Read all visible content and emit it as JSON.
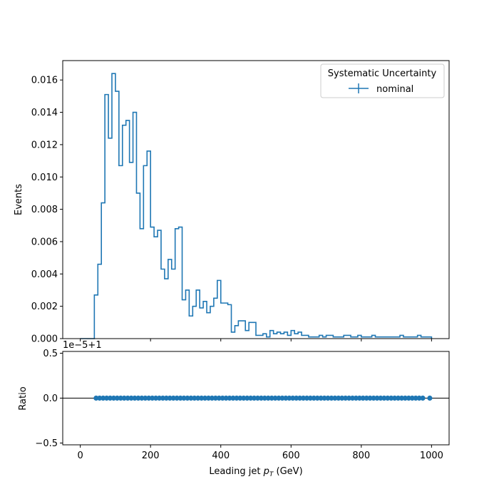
{
  "chart_data": [
    {
      "type": "step-histogram",
      "panel": "main",
      "ylabel": "Events",
      "xlim": [
        -50,
        1050
      ],
      "ylim": [
        0,
        0.0172
      ],
      "xticks": [
        0,
        200,
        400,
        600,
        800,
        1000
      ],
      "yticks": [
        "0.000",
        "0.002",
        "0.004",
        "0.006",
        "0.008",
        "0.010",
        "0.012",
        "0.014",
        "0.016"
      ],
      "bin_edges": [
        0,
        10,
        20,
        30,
        40,
        50,
        60,
        70,
        80,
        90,
        100,
        110,
        120,
        130,
        140,
        150,
        160,
        170,
        180,
        190,
        200,
        210,
        220,
        230,
        240,
        250,
        260,
        270,
        280,
        290,
        300,
        310,
        320,
        330,
        340,
        350,
        360,
        370,
        380,
        390,
        400,
        410,
        420,
        430,
        440,
        450,
        460,
        470,
        480,
        490,
        500,
        510,
        520,
        530,
        540,
        550,
        560,
        570,
        580,
        590,
        600,
        610,
        620,
        630,
        640,
        650,
        660,
        670,
        680,
        690,
        700,
        710,
        720,
        730,
        740,
        750,
        760,
        770,
        780,
        790,
        800,
        810,
        820,
        830,
        840,
        850,
        860,
        870,
        880,
        890,
        900,
        910,
        920,
        930,
        940,
        950,
        960,
        970,
        980,
        990,
        1000
      ],
      "series": [
        {
          "name": "nominal",
          "color": "#1f77b4",
          "values": [
            0,
            0,
            0,
            0,
            0.0027,
            0.0046,
            0.0084,
            0.0151,
            0.0124,
            0.0164,
            0.0153,
            0.0107,
            0.0132,
            0.0135,
            0.0109,
            0.014,
            0.009,
            0.0068,
            0.0107,
            0.0116,
            0.0069,
            0.0063,
            0.0067,
            0.0043,
            0.0037,
            0.0049,
            0.0043,
            0.0068,
            0.0069,
            0.0024,
            0.003,
            0.0014,
            0.002,
            0.003,
            0.0019,
            0.0023,
            0.0016,
            0.002,
            0.0025,
            0.0036,
            0.0022,
            0.0022,
            0.0021,
            0.0004,
            0.0008,
            0.0011,
            0.0011,
            0.0005,
            0.001,
            0.001,
            0.0002,
            0.0002,
            0.0003,
            0.0001,
            0.0005,
            0.0003,
            0.0004,
            0.0003,
            0.0004,
            0.0002,
            0.0005,
            0.0003,
            0.0004,
            0.0002,
            0.0002,
            0.0001,
            0.0001,
            0.0001,
            0.0002,
            0.0001,
            0.0002,
            0.0002,
            0.0001,
            0.0001,
            0.0001,
            0.0002,
            0.0002,
            0.0001,
            0.0001,
            0.0002,
            0.0001,
            0.0001,
            0.0001,
            0.0002,
            0.0001,
            0.0001,
            0.0001,
            0.0001,
            0.0001,
            0.0001,
            0.0001,
            0.0002,
            0.0001,
            0.0001,
            0.0001,
            0.0001,
            0.0002,
            0.0001,
            0.0001,
            0.0001
          ]
        }
      ],
      "legend": {
        "title": "Systematic Uncertainty",
        "entries": [
          "nominal"
        ],
        "placement": "top-right"
      },
      "grid": false
    },
    {
      "type": "scatter",
      "panel": "ratio",
      "xlabel": "Leading jet  pT (GeV)",
      "xlabel_main": "Leading jet ",
      "xlabel_var": "p",
      "xlabel_sub": "T",
      "xlabel_unit": " (GeV)",
      "ylabel": "Ratio",
      "offset_text": "1e−5+1",
      "xlim": [
        -50,
        1050
      ],
      "ylim": [
        -0.52,
        0.52
      ],
      "xticks": [
        0,
        200,
        400,
        600,
        800,
        1000
      ],
      "yticks": [
        "0.5",
        "0.0",
        "−0.5"
      ],
      "ytick_values": [
        0.5,
        0.0,
        -0.5
      ],
      "reference_line": 0.0,
      "series": [
        {
          "name": "nominal",
          "color": "#1f77b4",
          "x": [
            45,
            55,
            65,
            75,
            85,
            95,
            105,
            115,
            125,
            135,
            145,
            155,
            165,
            175,
            185,
            195,
            205,
            215,
            225,
            235,
            245,
            255,
            265,
            275,
            285,
            295,
            305,
            315,
            325,
            335,
            345,
            355,
            365,
            375,
            385,
            395,
            405,
            415,
            425,
            435,
            445,
            455,
            465,
            475,
            485,
            495,
            505,
            515,
            525,
            535,
            545,
            555,
            565,
            575,
            585,
            595,
            605,
            615,
            625,
            635,
            645,
            655,
            665,
            675,
            685,
            695,
            705,
            715,
            725,
            735,
            745,
            755,
            765,
            775,
            785,
            795,
            805,
            815,
            825,
            835,
            845,
            855,
            865,
            875,
            885,
            895,
            905,
            915,
            925,
            935,
            945,
            955,
            965,
            975,
            995
          ],
          "y_value": 0.0
        }
      ],
      "grid": false
    }
  ]
}
